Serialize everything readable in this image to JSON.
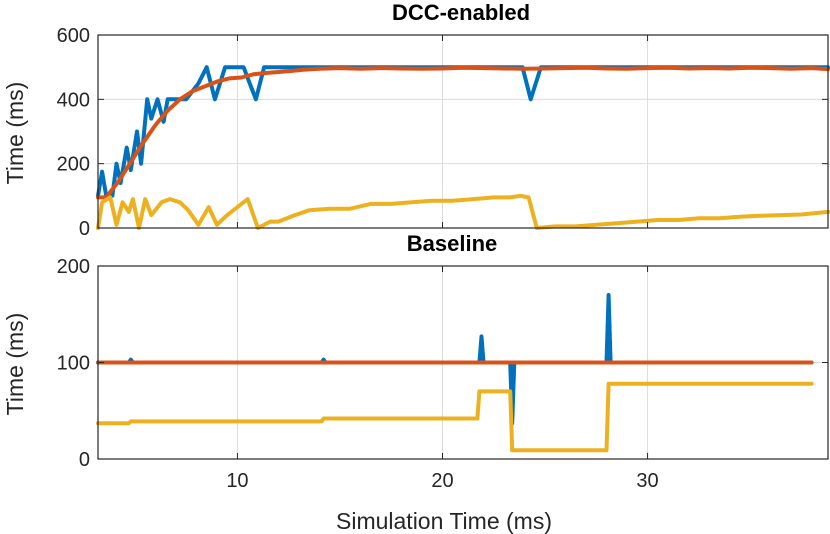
{
  "chart_data": [
    {
      "type": "line",
      "title": "DCC-enabled",
      "xlabel": "",
      "ylabel": "Time (ms)",
      "xlim": [
        3.2,
        38.8
      ],
      "ylim": [
        0,
        600
      ],
      "xticks": [
        10,
        20,
        30
      ],
      "yticks": [
        0,
        200,
        400,
        600
      ],
      "grid": true,
      "colors": [
        "#0072BD",
        "#D95319",
        "#EDB120"
      ],
      "series": [
        {
          "color": "#0072BD",
          "points": [
            [
              3.2,
              100
            ],
            [
              3.4,
              175
            ],
            [
              3.6,
              100
            ],
            [
              3.9,
              100
            ],
            [
              4.1,
              200
            ],
            [
              4.3,
              140
            ],
            [
              4.6,
              250
            ],
            [
              4.8,
              180
            ],
            [
              5.1,
              300
            ],
            [
              5.3,
              200
            ],
            [
              5.6,
              400
            ],
            [
              5.8,
              340
            ],
            [
              6.1,
              400
            ],
            [
              6.4,
              330
            ],
            [
              6.6,
              400
            ],
            [
              7.5,
              400
            ],
            [
              8.1,
              450
            ],
            [
              8.5,
              500
            ],
            [
              8.9,
              400
            ],
            [
              9.4,
              500
            ],
            [
              10.3,
              500
            ],
            [
              10.6,
              450
            ],
            [
              10.9,
              400
            ],
            [
              11.3,
              500
            ],
            [
              12,
              500
            ],
            [
              23.4,
              500
            ],
            [
              23.9,
              500
            ],
            [
              24.3,
              400
            ],
            [
              24.8,
              500
            ],
            [
              38.8,
              500
            ]
          ]
        },
        {
          "color": "#D95319",
          "points": [
            [
              3.2,
              95
            ],
            [
              3.6,
              95
            ],
            [
              4.2,
              145
            ],
            [
              4.8,
              205
            ],
            [
              5.4,
              265
            ],
            [
              6,
              320
            ],
            [
              6.6,
              365
            ],
            [
              7.2,
              400
            ],
            [
              7.8,
              425
            ],
            [
              8.4,
              440
            ],
            [
              9,
              455
            ],
            [
              9.6,
              465
            ],
            [
              10.2,
              468
            ],
            [
              10.8,
              478
            ],
            [
              11.4,
              482
            ],
            [
              12,
              485
            ],
            [
              12.6,
              488
            ],
            [
              13.2,
              492
            ],
            [
              14,
              495
            ],
            [
              15,
              497
            ],
            [
              16,
              495
            ],
            [
              17,
              497
            ],
            [
              18,
              496
            ],
            [
              19,
              495
            ],
            [
              20,
              496
            ],
            [
              21,
              498
            ],
            [
              22,
              497
            ],
            [
              23,
              496
            ],
            [
              24,
              495
            ],
            [
              25,
              496
            ],
            [
              26,
              497
            ],
            [
              27,
              498
            ],
            [
              28,
              496
            ],
            [
              29,
              495
            ],
            [
              30,
              497
            ],
            [
              31,
              498
            ],
            [
              32,
              496
            ],
            [
              33,
              497
            ],
            [
              34,
              496
            ],
            [
              35,
              498
            ],
            [
              36,
              497
            ],
            [
              37,
              495
            ],
            [
              38,
              497
            ],
            [
              38.8,
              494
            ]
          ]
        },
        {
          "color": "#EDB120",
          "points": [
            [
              3.2,
              0
            ],
            [
              3.4,
              80
            ],
            [
              3.8,
              95
            ],
            [
              4.1,
              10
            ],
            [
              4.4,
              80
            ],
            [
              4.7,
              50
            ],
            [
              4.9,
              90
            ],
            [
              5.2,
              0
            ],
            [
              5.5,
              90
            ],
            [
              5.8,
              40
            ],
            [
              6.3,
              80
            ],
            [
              6.7,
              90
            ],
            [
              7.2,
              80
            ],
            [
              7.6,
              55
            ],
            [
              8.1,
              10
            ],
            [
              8.6,
              65
            ],
            [
              9.0,
              10
            ],
            [
              9.5,
              40
            ],
            [
              10.5,
              90
            ],
            [
              11.0,
              0
            ],
            [
              11.6,
              20
            ],
            [
              12,
              20
            ],
            [
              12.8,
              40
            ],
            [
              13.5,
              55
            ],
            [
              14.5,
              60
            ],
            [
              15.5,
              60
            ],
            [
              16.5,
              75
            ],
            [
              17.5,
              75
            ],
            [
              18.5,
              80
            ],
            [
              19.5,
              85
            ],
            [
              20.5,
              85
            ],
            [
              21.5,
              90
            ],
            [
              22.5,
              95
            ],
            [
              23.3,
              95
            ],
            [
              23.8,
              100
            ],
            [
              24.2,
              95
            ],
            [
              24.6,
              0
            ],
            [
              25.5,
              5
            ],
            [
              26.5,
              5
            ],
            [
              27.5,
              10
            ],
            [
              28.5,
              15
            ],
            [
              29.5,
              20
            ],
            [
              30.5,
              25
            ],
            [
              31.5,
              25
            ],
            [
              32.5,
              30
            ],
            [
              33.5,
              30
            ],
            [
              34.5,
              35
            ],
            [
              35.5,
              38
            ],
            [
              36.5,
              40
            ],
            [
              37.5,
              42
            ],
            [
              38.8,
              50
            ]
          ]
        }
      ]
    },
    {
      "type": "line",
      "title": "Baseline",
      "xlabel": "Simulation Time (ms)",
      "ylabel": "Time (ms)",
      "xlim": [
        3.2,
        38.8
      ],
      "ylim": [
        0,
        200
      ],
      "xticks": [
        10,
        20,
        30
      ],
      "yticks": [
        0,
        100,
        200
      ],
      "grid": true,
      "colors": [
        "#0072BD",
        "#D95319",
        "#EDB120"
      ],
      "series": [
        {
          "color": "#0072BD",
          "points": [
            [
              3.2,
              100
            ],
            [
              4.7,
              100
            ],
            [
              4.8,
              103
            ],
            [
              4.9,
              100
            ],
            [
              14.1,
              100
            ],
            [
              14.2,
              103
            ],
            [
              14.3,
              100
            ],
            [
              21.8,
              100
            ],
            [
              21.9,
              127
            ],
            [
              22.0,
              100
            ],
            [
              23.3,
              100
            ],
            [
              23.4,
              37
            ],
            [
              23.5,
              100
            ],
            [
              28.0,
              100
            ],
            [
              28.1,
              170
            ],
            [
              28.2,
              100
            ],
            [
              38.0,
              100
            ]
          ]
        },
        {
          "color": "#D95319",
          "points": [
            [
              3.2,
              100
            ],
            [
              38.0,
              100
            ]
          ]
        },
        {
          "color": "#EDB120",
          "points": [
            [
              3.2,
              37
            ],
            [
              4.7,
              37
            ],
            [
              4.8,
              39
            ],
            [
              14.1,
              39
            ],
            [
              14.2,
              42
            ],
            [
              21.7,
              42
            ],
            [
              21.8,
              70
            ],
            [
              23.3,
              70
            ],
            [
              23.4,
              9
            ],
            [
              28.0,
              9
            ],
            [
              28.1,
              78
            ],
            [
              38.0,
              78
            ]
          ]
        }
      ]
    }
  ]
}
